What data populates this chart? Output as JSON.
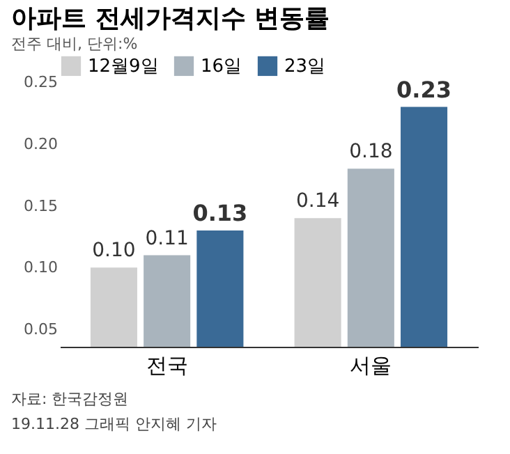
{
  "chart_data": {
    "type": "bar",
    "title": "아파트 전세가격지수 변동률",
    "subtitle": "전주 대비, 단위:%",
    "categories": [
      "전국",
      "서울"
    ],
    "series": [
      {
        "name": "12월9일",
        "color": "#d0d0d0",
        "values": [
          0.1,
          0.14
        ],
        "value_labels": [
          "0.10",
          "0.14"
        ]
      },
      {
        "name": "16일",
        "color": "#a9b4bd",
        "values": [
          0.11,
          0.18
        ],
        "value_labels": [
          "0.11",
          "0.18"
        ]
      },
      {
        "name": "23일",
        "color": "#3a6a96",
        "values": [
          0.13,
          0.23
        ],
        "value_labels": [
          "0.13",
          "0.23"
        ]
      }
    ],
    "ylim": [
      0.036,
      0.25
    ],
    "yticks": [
      0.05,
      {
        "value": 0.1,
        "label": "0.10"
      },
      0.15,
      {
        "value": 0.2,
        "label": "0.20"
      },
      0.25
    ],
    "grid": false,
    "legend": "top left",
    "annotations": [
      "자료: 한국감정원",
      "19.11.28 그래픽 안지혜 기자"
    ]
  }
}
